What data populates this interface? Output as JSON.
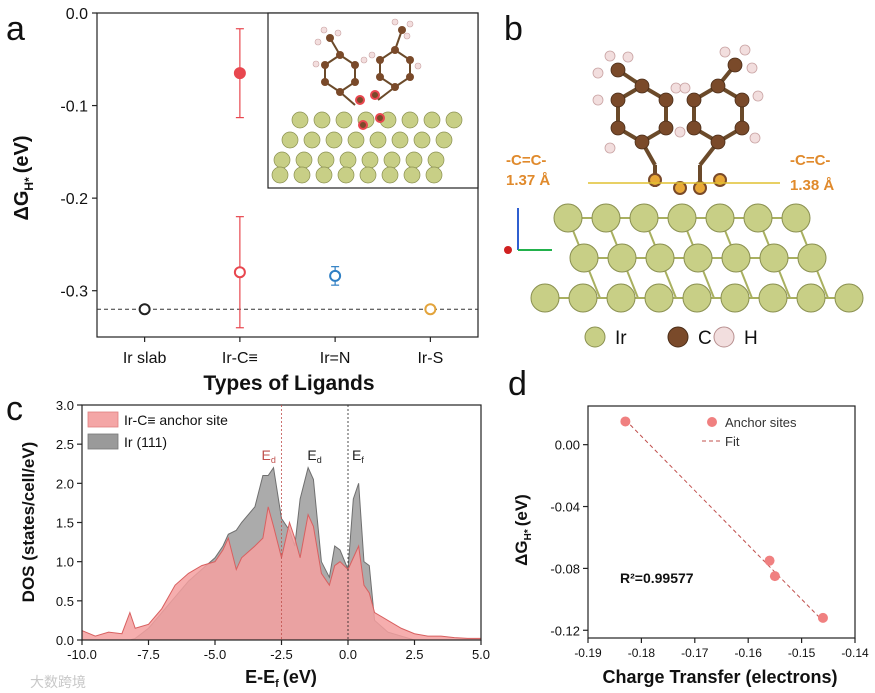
{
  "panel_labels": {
    "a": "a",
    "b": "b",
    "c": "c",
    "d": "d"
  },
  "panel_b": {
    "left_bond_label": "-C=C-",
    "left_bond_length": "1.37 Å",
    "right_bond_label": "-C=C-",
    "right_bond_length": "1.38 Å",
    "legend": [
      {
        "label": "Ir",
        "color": "#c8cf86"
      },
      {
        "label": "C",
        "color": "#7a4a2a"
      },
      {
        "label": "H",
        "color": "#f2dede"
      }
    ],
    "bond_label_color": "#e08a2c"
  },
  "watermark": "大数跨境",
  "chart_data": [
    {
      "id": "a",
      "type": "scatter",
      "title": "",
      "xlabel": "Types of Ligands",
      "ylabel_main": "ΔG",
      "ylabel_sub": "H*",
      "ylabel_unit": "(eV)",
      "categories": [
        "Ir slab",
        "Ir-C≡",
        "Ir=N",
        "Ir-S"
      ],
      "ylim": [
        -0.35,
        0.0
      ],
      "yticks": [
        0.0,
        -0.1,
        -0.2,
        -0.3
      ],
      "ytick_labels": [
        "0.0",
        "-0.1",
        "-0.2",
        "-0.3"
      ],
      "reference_line": -0.32,
      "points": [
        {
          "category": "Ir slab",
          "value": -0.32,
          "err": 0.0,
          "filled": false,
          "color": "#222222"
        },
        {
          "category": "Ir-C≡",
          "value": -0.065,
          "err": 0.048,
          "filled": true,
          "color": "#e8474f"
        },
        {
          "category": "Ir-C≡",
          "value": -0.28,
          "err": 0.06,
          "filled": false,
          "color": "#e8474f"
        },
        {
          "category": "Ir=N",
          "value": -0.284,
          "err": 0.01,
          "filled": false,
          "color": "#2f7fc4"
        },
        {
          "category": "Ir-S",
          "value": -0.32,
          "err": 0.004,
          "filled": false,
          "color": "#e3a43c"
        }
      ]
    },
    {
      "id": "c",
      "type": "area",
      "xlabel_main": "E-E",
      "xlabel_sub": "f",
      "xlabel_unit": "(eV)",
      "ylabel": "DOS (states/cell/eV)",
      "xlim": [
        -10.0,
        5.0
      ],
      "ylim": [
        0.0,
        3.0
      ],
      "xticks": [
        -10.0,
        -7.5,
        -5.0,
        -2.5,
        0.0,
        2.5,
        5.0
      ],
      "xtick_labels": [
        "-10.0",
        "-7.5",
        "-5.0",
        "-2.5",
        "0.0",
        "2.5",
        "5.0"
      ],
      "yticks": [
        0.0,
        0.5,
        1.0,
        1.5,
        2.0,
        2.5,
        3.0
      ],
      "ytick_labels": [
        "0.0",
        "0.5",
        "1.0",
        "1.5",
        "2.0",
        "2.5",
        "3.0"
      ],
      "legend": [
        "Ir-C≡ anchor site",
        "Ir (111)"
      ],
      "annotations": [
        {
          "main": "E",
          "sub": "d",
          "x": -2.5,
          "color": "#c0504d"
        },
        {
          "main": "E",
          "sub": "d",
          "x": -1.3,
          "color": "#222222"
        },
        {
          "main": "E",
          "sub": "f",
          "x": 0.0,
          "color": "#222222"
        }
      ],
      "x": [
        -10.0,
        -9.5,
        -9.0,
        -8.5,
        -8.2,
        -8.0,
        -7.5,
        -7.0,
        -6.5,
        -6.0,
        -5.5,
        -5.0,
        -4.7,
        -4.5,
        -4.2,
        -4.0,
        -3.5,
        -3.2,
        -3.0,
        -2.8,
        -2.5,
        -2.2,
        -2.0,
        -1.8,
        -1.5,
        -1.3,
        -1.0,
        -0.7,
        -0.5,
        -0.3,
        0.0,
        0.2,
        0.4,
        0.6,
        0.8,
        1.0,
        1.5,
        2.0,
        2.5,
        3.0,
        3.5,
        4.0,
        4.5,
        5.0
      ],
      "series": [
        {
          "name": "Ir (111)",
          "color": "#8c8c8c",
          "values": [
            0.0,
            0.0,
            0.0,
            0.0,
            0.0,
            0.02,
            0.15,
            0.35,
            0.55,
            0.75,
            0.9,
            1.05,
            1.2,
            1.35,
            1.4,
            1.5,
            1.7,
            2.1,
            2.1,
            2.2,
            1.55,
            1.4,
            1.2,
            1.8,
            2.2,
            2.05,
            1.0,
            0.8,
            1.2,
            1.15,
            0.9,
            1.8,
            2.0,
            1.0,
            0.95,
            0.25,
            0.1,
            0.05,
            0.0,
            0.0,
            0.0,
            0.0,
            0.0,
            0.0
          ]
        },
        {
          "name": "Ir-C≡ anchor site",
          "color": "#f08080",
          "values": [
            0.12,
            0.05,
            0.1,
            0.08,
            0.35,
            0.15,
            0.2,
            0.4,
            0.7,
            0.85,
            0.95,
            1.0,
            1.15,
            1.3,
            0.9,
            1.05,
            1.2,
            1.3,
            1.7,
            1.45,
            1.05,
            1.5,
            1.3,
            1.05,
            1.6,
            1.45,
            0.85,
            0.7,
            0.95,
            1.0,
            0.9,
            1.05,
            1.2,
            0.7,
            0.6,
            0.35,
            0.25,
            0.15,
            0.08,
            0.05,
            0.05,
            0.03,
            0.02,
            0.02
          ]
        }
      ]
    },
    {
      "id": "d",
      "type": "scatter",
      "xlabel": "Charge Transfer (electrons)",
      "ylabel_main": "ΔG",
      "ylabel_sub": "H*",
      "ylabel_unit": "(eV)",
      "xlim": [
        -0.19,
        -0.14
      ],
      "ylim": [
        -0.125,
        0.025
      ],
      "xticks": [
        -0.19,
        -0.18,
        -0.17,
        -0.16,
        -0.15,
        -0.14
      ],
      "xtick_labels": [
        "-0.19",
        "-0.18",
        "-0.17",
        "-0.16",
        "-0.15",
        "-0.14"
      ],
      "yticks": [
        0.0,
        -0.04,
        -0.08,
        -0.12
      ],
      "ytick_labels": [
        "0.00",
        "-0.04",
        "-0.08",
        "-0.12"
      ],
      "legend": [
        "Anchor sites",
        "Fit"
      ],
      "r2_label": "R²=0.99577",
      "points": [
        {
          "x": -0.183,
          "y": 0.015
        },
        {
          "x": -0.156,
          "y": -0.075
        },
        {
          "x": -0.155,
          "y": -0.085
        },
        {
          "x": -0.146,
          "y": -0.112
        }
      ],
      "fit": {
        "x": [
          -0.183,
          -0.146
        ],
        "y": [
          0.016,
          -0.114
        ]
      }
    }
  ]
}
